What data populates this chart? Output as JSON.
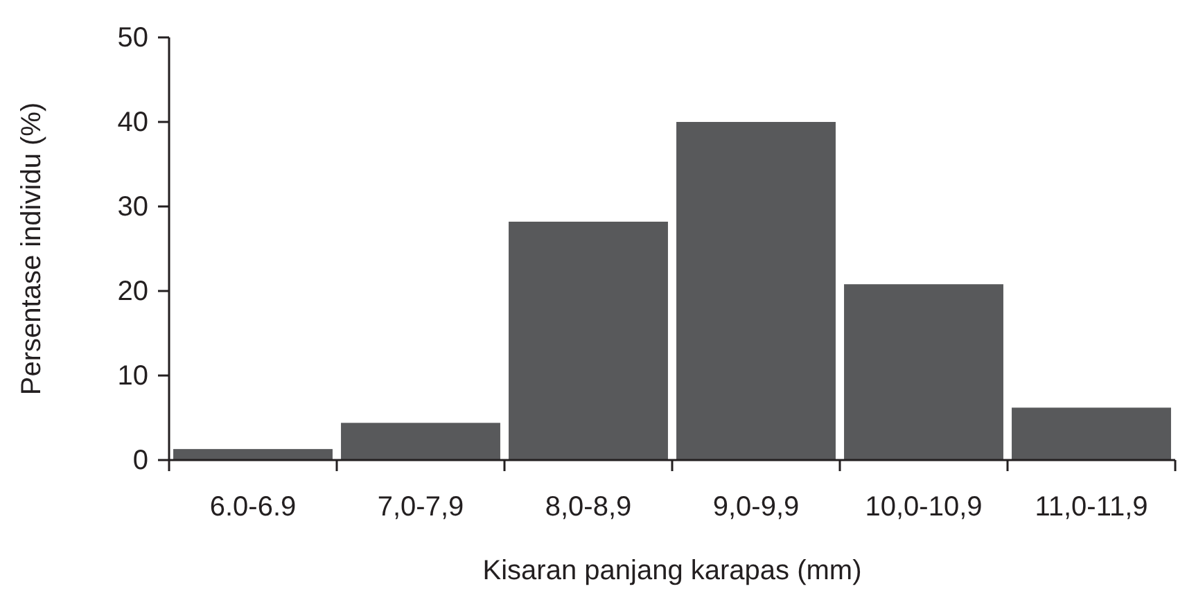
{
  "chart_data": {
    "type": "bar",
    "xlabel": "Kisaran panjang karapas (mm)",
    "ylabel": "Persentase individu (%)",
    "categories": [
      "6.0-6.9",
      "7,0-7,9",
      "8,0-8,9",
      "9,0-9,9",
      "10,0-10,9",
      "11,0-11,9"
    ],
    "values": [
      1.3,
      4.4,
      28.2,
      40,
      20.8,
      6.2
    ],
    "color": "#58595b",
    "ylim": [
      0,
      50
    ],
    "yticks": [
      0,
      10,
      20,
      30,
      40,
      50
    ],
    "grid": false
  }
}
